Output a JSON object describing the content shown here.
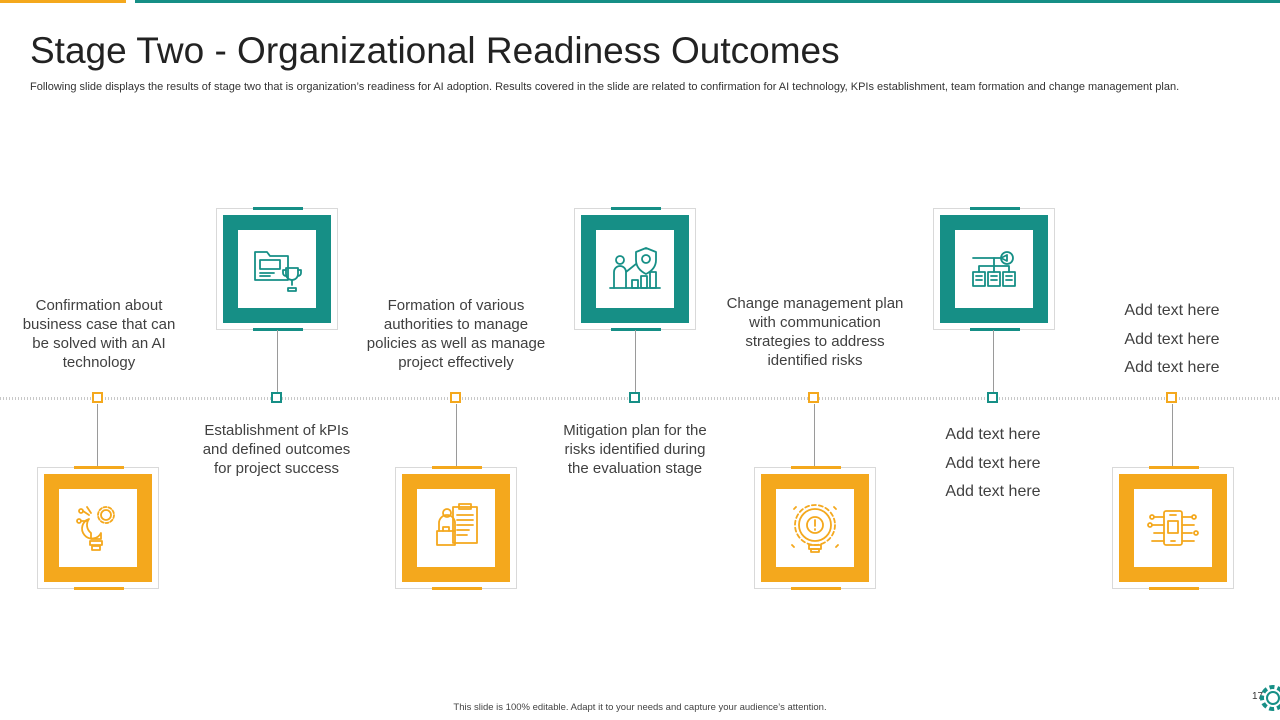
{
  "slide": {
    "title": "Stage Two - Organizational Readiness Outcomes",
    "subtitle": "Following slide displays the results of stage two that is organization’s readiness for AI adoption. Results covered in the slide are related to confirmation for AI technology, KPIs establishment, team formation and change management plan.",
    "footer": "This slide is 100% editable. Adapt it to your needs and capture your audience’s attention.",
    "page_number": "17"
  },
  "colors": {
    "teal": "#168f86",
    "orange": "#f4a81d",
    "timeline": "#c8c8c8"
  },
  "steps": [
    {
      "text": "Confirmation about business case that can be solved with an AI technology",
      "icon": "lightbulb-gear-icon"
    },
    {
      "text": "Establishment of kPIs and defined outcomes for project success",
      "icon": "folder-trophy-icon"
    },
    {
      "text": "Formation of various authorities to manage policies as well as manage project effectively",
      "icon": "clipboard-team-icon"
    },
    {
      "text": "Mitigation plan for the risks identified during the evaluation stage",
      "icon": "presenter-shield-icon"
    },
    {
      "text": "Change management plan with communication strategies to address identified risks",
      "icon": "idea-gear-icon"
    },
    {
      "lines": [
        "Add text here",
        "Add text here",
        "Add text here"
      ],
      "icon": "pencil-network-icon"
    },
    {
      "lines": [
        "Add text here",
        "Add text here",
        "Add text here"
      ],
      "icon": "circuit-chip-icon"
    }
  ]
}
